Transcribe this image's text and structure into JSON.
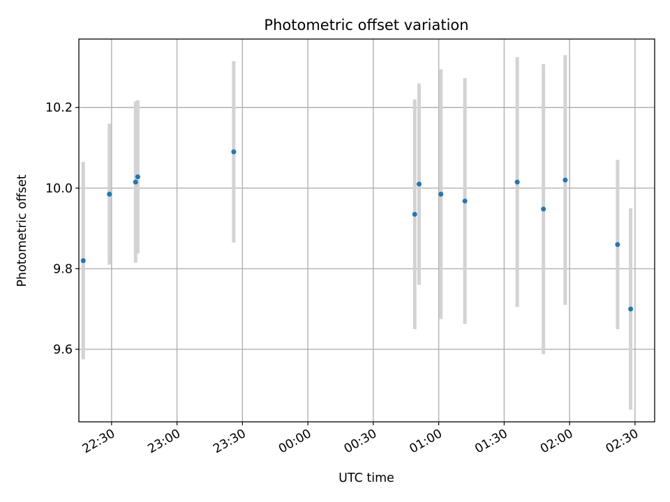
{
  "chart_data": {
    "type": "scatter",
    "title": "Photometric offset variation",
    "xlabel": "UTC time",
    "ylabel": "Photometric offset",
    "xlim": [
      "22:15",
      "02:39"
    ],
    "ylim": [
      9.42,
      10.37
    ],
    "x_ticks": [
      "22:30",
      "23:00",
      "23:30",
      "00:00",
      "00:30",
      "01:00",
      "01:30",
      "02:00",
      "02:30"
    ],
    "y_ticks": [
      "9.6",
      "9.8",
      "10.0",
      "10.2"
    ],
    "grid": true,
    "colors": {
      "point": "#1f77b4",
      "errorbar": "#d3d3d3"
    },
    "series": [
      {
        "points": [
          {
            "x": "22:17",
            "y": 9.82,
            "yerr": 0.245
          },
          {
            "x": "22:29",
            "y": 9.985,
            "yerr": 0.175
          },
          {
            "x": "22:41",
            "y": 10.015,
            "yerr": 0.2
          },
          {
            "x": "22:42",
            "y": 10.028,
            "yerr": 0.19
          },
          {
            "x": "23:26",
            "y": 10.09,
            "yerr": 0.225
          },
          {
            "x": "00:49",
            "y": 9.935,
            "yerr": 0.285
          },
          {
            "x": "00:51",
            "y": 10.01,
            "yerr": 0.25
          },
          {
            "x": "01:01",
            "y": 9.985,
            "yerr": 0.31
          },
          {
            "x": "01:12",
            "y": 9.968,
            "yerr": 0.305
          },
          {
            "x": "01:36",
            "y": 10.015,
            "yerr": 0.31
          },
          {
            "x": "01:48",
            "y": 9.948,
            "yerr": 0.36
          },
          {
            "x": "01:58",
            "y": 10.02,
            "yerr": 0.31
          },
          {
            "x": "02:22",
            "y": 9.86,
            "yerr": 0.21
          },
          {
            "x": "02:28",
            "y": 9.7,
            "yerr": 0.25
          }
        ]
      }
    ]
  }
}
